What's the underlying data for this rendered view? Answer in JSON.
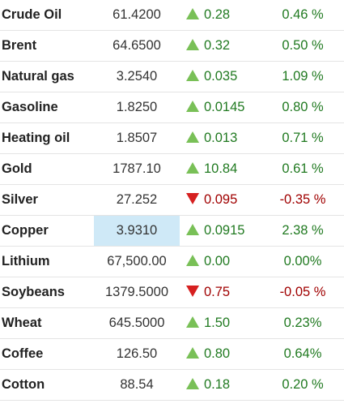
{
  "commodities": [
    {
      "name": "Crude Oil",
      "price": "61.4200",
      "change": "0.28",
      "percent": "0.46 %",
      "direction": "up",
      "highlight": false
    },
    {
      "name": "Brent",
      "price": "64.6500",
      "change": "0.32",
      "percent": "0.50 %",
      "direction": "up",
      "highlight": false
    },
    {
      "name": "Natural gas",
      "price": "3.2540",
      "change": "0.035",
      "percent": "1.09 %",
      "direction": "up",
      "highlight": false
    },
    {
      "name": "Gasoline",
      "price": "1.8250",
      "change": "0.0145",
      "percent": "0.80 %",
      "direction": "up",
      "highlight": false
    },
    {
      "name": "Heating oil",
      "price": "1.8507",
      "change": "0.013",
      "percent": "0.71 %",
      "direction": "up",
      "highlight": false
    },
    {
      "name": "Gold",
      "price": "1787.10",
      "change": "10.84",
      "percent": "0.61 %",
      "direction": "up",
      "highlight": false
    },
    {
      "name": "Silver",
      "price": "27.252",
      "change": "0.095",
      "percent": "-0.35 %",
      "direction": "down",
      "highlight": false
    },
    {
      "name": "Copper",
      "price": "3.9310",
      "change": "0.0915",
      "percent": "2.38 %",
      "direction": "up",
      "highlight": true
    },
    {
      "name": "Lithium",
      "price": "67,500.00",
      "change": "0.00",
      "percent": "0.00%",
      "direction": "up",
      "highlight": false
    },
    {
      "name": "Soybeans",
      "price": "1379.5000",
      "change": "0.75",
      "percent": "-0.05 %",
      "direction": "down",
      "highlight": false
    },
    {
      "name": "Wheat",
      "price": "645.5000",
      "change": "1.50",
      "percent": "0.23%",
      "direction": "up",
      "highlight": false
    },
    {
      "name": "Coffee",
      "price": "126.50",
      "change": "0.80",
      "percent": "0.64%",
      "direction": "up",
      "highlight": false
    },
    {
      "name": "Cotton",
      "price": "88.54",
      "change": "0.18",
      "percent": "0.20 %",
      "direction": "up",
      "highlight": false
    }
  ],
  "colors": {
    "up_arrow": "#79c057",
    "down_arrow": "#d62020",
    "up_text": "#217a21",
    "down_text": "#a00000",
    "highlight": "#cfe9f7"
  },
  "icons": {
    "up": "triangle-up-icon",
    "down": "triangle-down-icon"
  }
}
